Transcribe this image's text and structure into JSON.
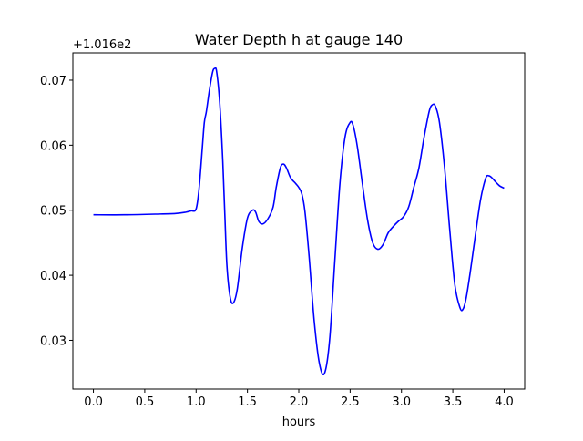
{
  "chart_data": {
    "type": "line",
    "title": "Water Depth h at gauge 140",
    "xlabel": "hours",
    "ylabel": "",
    "offset_label": "+1.016e2",
    "xlim": [
      -0.2,
      4.2
    ],
    "ylim": [
      0.0225,
      0.0742
    ],
    "x_ticks": [
      0.0,
      0.5,
      1.0,
      1.5,
      2.0,
      2.5,
      3.0,
      3.5,
      4.0
    ],
    "x_tick_labels": [
      "0.0",
      "0.5",
      "1.0",
      "1.5",
      "2.0",
      "2.5",
      "3.0",
      "3.5",
      "4.0"
    ],
    "y_ticks": [
      0.03,
      0.04,
      0.05,
      0.06,
      0.07
    ],
    "y_tick_labels": [
      "0.03",
      "0.04",
      "0.05",
      "0.06",
      "0.07"
    ],
    "grid": false,
    "legend": "none",
    "series_color": "#0000ff",
    "series": [
      {
        "x": [
          0.0,
          0.3,
          0.6,
          0.8,
          0.9,
          0.95,
          1.0,
          1.03,
          1.06,
          1.08,
          1.1,
          1.13,
          1.16,
          1.18,
          1.2,
          1.23,
          1.26,
          1.28,
          1.3,
          1.33,
          1.36,
          1.4,
          1.45,
          1.5,
          1.55,
          1.58,
          1.61,
          1.65,
          1.7,
          1.75,
          1.78,
          1.82,
          1.85,
          1.88,
          1.92,
          1.97,
          2.0,
          2.03,
          2.06,
          2.1,
          2.15,
          2.2,
          2.25,
          2.3,
          2.35,
          2.4,
          2.45,
          2.5,
          2.53,
          2.57,
          2.62,
          2.67,
          2.72,
          2.77,
          2.82,
          2.87,
          2.92,
          2.97,
          3.02,
          3.07,
          3.12,
          3.17,
          3.22,
          3.27,
          3.3,
          3.33,
          3.37,
          3.42,
          3.47,
          3.52,
          3.57,
          3.6,
          3.63,
          3.67,
          3.72,
          3.77,
          3.82,
          3.85,
          3.88,
          3.92,
          3.96,
          4.0
        ],
        "y": [
          0.0493,
          0.0493,
          0.0494,
          0.0495,
          0.0497,
          0.0499,
          0.0502,
          0.0535,
          0.0595,
          0.0635,
          0.0652,
          0.0685,
          0.0712,
          0.0718,
          0.0713,
          0.0665,
          0.0575,
          0.0492,
          0.0415,
          0.0368,
          0.0357,
          0.0378,
          0.0442,
          0.0488,
          0.05,
          0.0497,
          0.0483,
          0.0479,
          0.0487,
          0.0505,
          0.0535,
          0.0565,
          0.0571,
          0.0565,
          0.055,
          0.0541,
          0.0535,
          0.0525,
          0.0498,
          0.043,
          0.033,
          0.0265,
          0.0249,
          0.03,
          0.042,
          0.054,
          0.0612,
          0.0635,
          0.063,
          0.0598,
          0.054,
          0.0485,
          0.045,
          0.044,
          0.0447,
          0.0465,
          0.0475,
          0.0483,
          0.049,
          0.0505,
          0.0535,
          0.0565,
          0.0612,
          0.0652,
          0.0662,
          0.066,
          0.0635,
          0.0565,
          0.047,
          0.0385,
          0.035,
          0.0348,
          0.0365,
          0.0405,
          0.0462,
          0.0516,
          0.0549,
          0.0553,
          0.055,
          0.0543,
          0.0537,
          0.0534
        ]
      }
    ]
  }
}
